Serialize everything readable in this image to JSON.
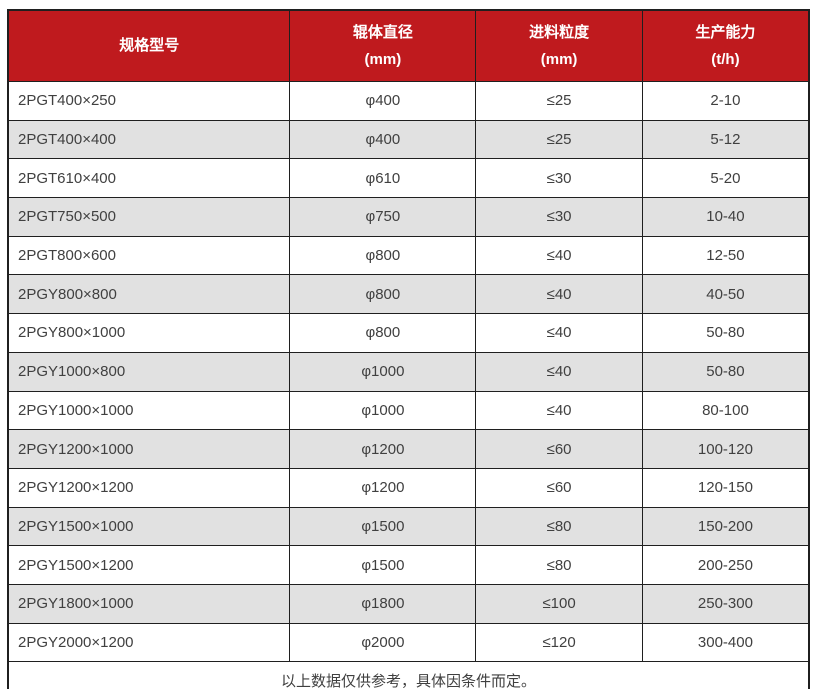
{
  "table": {
    "columns": [
      {
        "title": "规格型号",
        "unit": ""
      },
      {
        "title": "辊体直径",
        "unit": "(mm)"
      },
      {
        "title": "进料粒度",
        "unit": "(mm)"
      },
      {
        "title": "生产能力",
        "unit": "(t/h)"
      }
    ],
    "rows": [
      [
        "2PGT400×250",
        "φ400",
        "≤25",
        "2-10"
      ],
      [
        "2PGT400×400",
        "φ400",
        "≤25",
        "5-12"
      ],
      [
        "2PGT610×400",
        "φ610",
        "≤30",
        "5-20"
      ],
      [
        "2PGT750×500",
        "φ750",
        "≤30",
        "10-40"
      ],
      [
        "2PGT800×600",
        "φ800",
        "≤40",
        "12-50"
      ],
      [
        "2PGY800×800",
        "φ800",
        "≤40",
        "40-50"
      ],
      [
        "2PGY800×1000",
        "φ800",
        "≤40",
        "50-80"
      ],
      [
        "2PGY1000×800",
        "φ1000",
        "≤40",
        "50-80"
      ],
      [
        "2PGY1000×1000",
        "φ1000",
        "≤40",
        "80-100"
      ],
      [
        "2PGY1200×1000",
        "φ1200",
        "≤60",
        "100-120"
      ],
      [
        "2PGY1200×1200",
        "φ1200",
        "≤60",
        "120-150"
      ],
      [
        "2PGY1500×1000",
        "φ1500",
        "≤80",
        "150-200"
      ],
      [
        "2PGY1500×1200",
        "φ1500",
        "≤80",
        "200-250"
      ],
      [
        "2PGY1800×1000",
        "φ1800",
        "≤100",
        "250-300"
      ],
      [
        "2PGY2000×1200",
        "φ2000",
        "≤120",
        "300-400"
      ]
    ],
    "footnote": "以上数据仅供参考，具体因条件而定。"
  },
  "colors": {
    "header_bg": "#bf1a1e",
    "header_text": "#ffffff",
    "row_alt_bg": "#e1e1e1",
    "border": "#1f1f1f",
    "body_text": "#404040"
  }
}
